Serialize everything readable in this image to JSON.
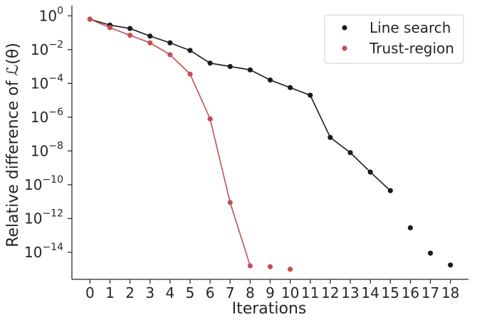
{
  "chart_data": {
    "type": "line",
    "xlabel": "Iterations",
    "ylabel": "Relative difference of ℒ(θ)",
    "y_scale": "log",
    "xlim": [
      -0.9,
      18.9
    ],
    "ylim_log10": [
      -15.6,
      0.6
    ],
    "x_ticks": [
      0,
      1,
      2,
      3,
      4,
      5,
      6,
      7,
      8,
      9,
      10,
      11,
      12,
      13,
      14,
      15,
      16,
      17,
      18
    ],
    "y_tick_exponents": [
      0,
      -2,
      -4,
      -6,
      -8,
      -10,
      -12,
      -14
    ],
    "y_tick_labels": [
      "10",
      "10",
      "10",
      "10",
      "10",
      "10",
      "10",
      "10"
    ],
    "y_tick_exp_text": [
      "0",
      "−2",
      "−4",
      "−6",
      "−8",
      "−10",
      "−12",
      "−14"
    ],
    "legend_position": "top-right",
    "grid": false,
    "series": [
      {
        "name": "Line search",
        "color": "#1a1a1a",
        "x": [
          0,
          1,
          2,
          3,
          4,
          5,
          6,
          7,
          8,
          9,
          10,
          11,
          12,
          13,
          14,
          15,
          16,
          17,
          18
        ],
        "log10_y": [
          -0.2,
          -0.55,
          -0.75,
          -1.2,
          -1.6,
          -2.05,
          -2.8,
          -3.0,
          -3.2,
          -3.8,
          -4.25,
          -4.7,
          -7.2,
          -8.1,
          -9.25,
          -10.35,
          -12.55,
          -14.05,
          -14.75
        ],
        "connected_until_x": 15
      },
      {
        "name": "Trust-region",
        "color": "#c44e52",
        "x": [
          0,
          1,
          2,
          3,
          4,
          5,
          6,
          7,
          8,
          9,
          10
        ],
        "log10_y": [
          -0.2,
          -0.7,
          -1.15,
          -1.6,
          -2.3,
          -3.45,
          -6.1,
          -11.05,
          -14.8,
          -14.85,
          -15.0
        ],
        "connected_until_x": 8
      }
    ]
  }
}
